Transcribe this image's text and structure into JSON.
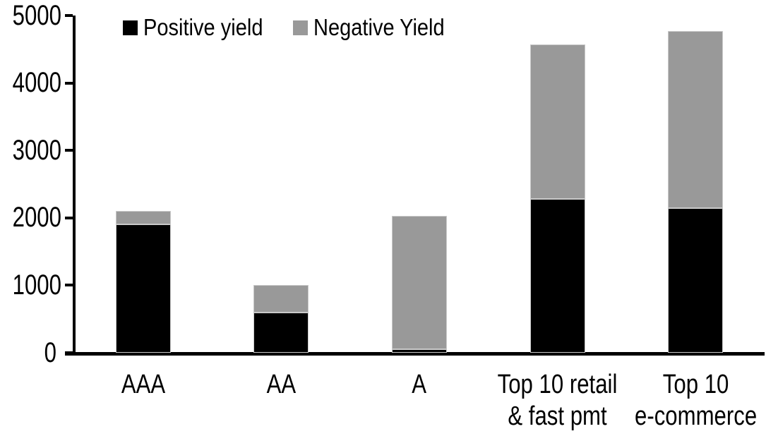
{
  "chart_data": {
    "type": "bar",
    "stacked": true,
    "title": "",
    "xlabel": "",
    "ylabel": "",
    "categories": [
      "AAA",
      "AA",
      "A",
      "Top 10 retail\n& fast pmt",
      "Top 10\ne-commerce"
    ],
    "series": [
      {
        "name": "Positive yield",
        "color": "#000000",
        "values": [
          1900,
          600,
          50,
          2280,
          2140
        ]
      },
      {
        "name": "Negative Yield",
        "color": "#999999",
        "values": [
          200,
          400,
          1980,
          2290,
          2630
        ]
      }
    ],
    "totals": [
      2100,
      1000,
      2030,
      4570,
      4770
    ],
    "ylim": [
      0,
      5000
    ],
    "yticks": [
      0,
      1000,
      2000,
      3000,
      4000,
      5000
    ],
    "ytick_labels": [
      "0",
      "1000",
      "2000",
      "3000",
      "4000",
      "5000"
    ],
    "grid": false,
    "legend_position": "top"
  },
  "colors": {
    "positive": "#000000",
    "negative": "#999999",
    "axis": "#000000",
    "background": "#ffffff",
    "segment_border": "#c9c9c9"
  }
}
